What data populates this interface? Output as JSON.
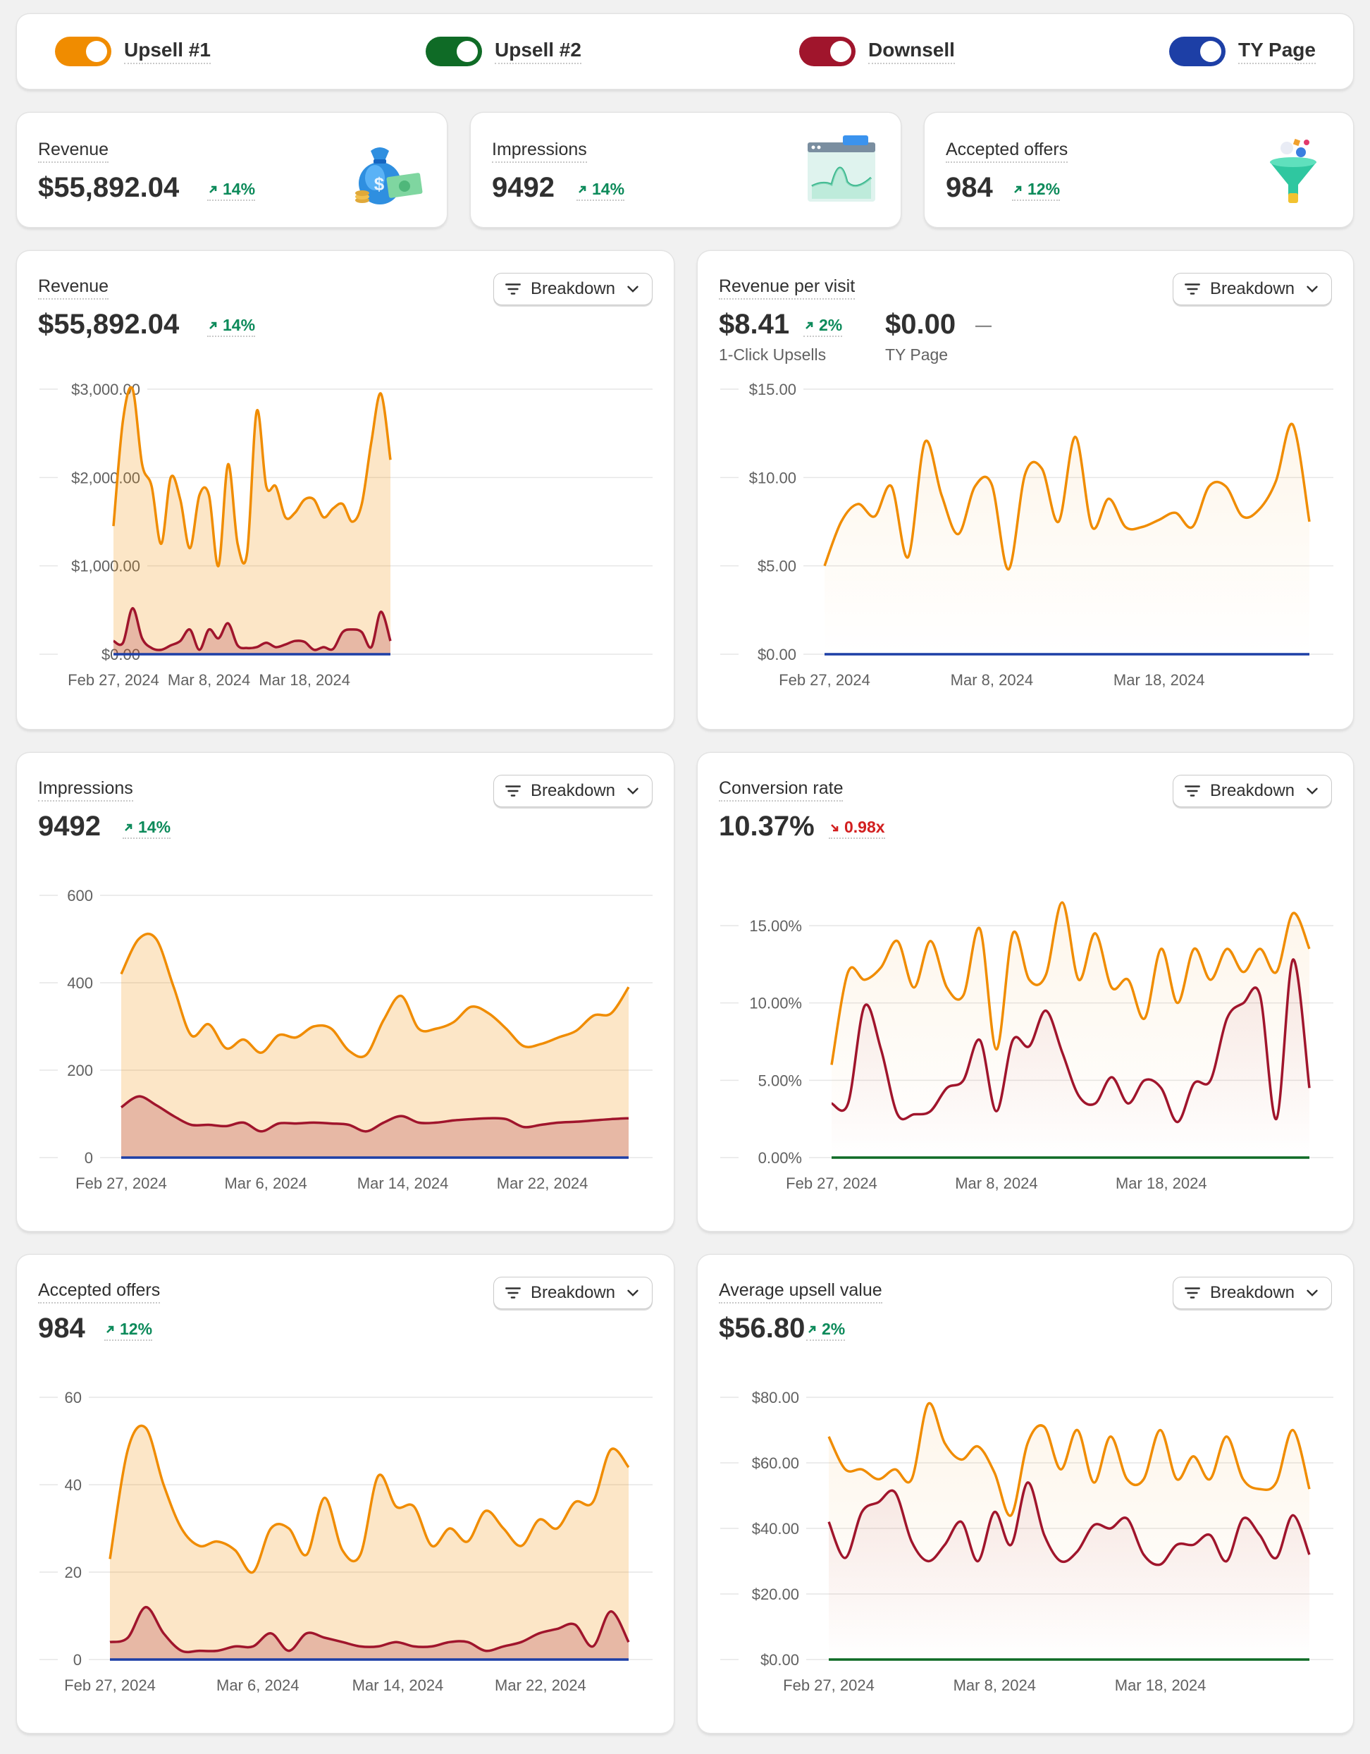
{
  "toggles": [
    {
      "label": "Upsell #1",
      "color": "#f08c00",
      "on": true
    },
    {
      "label": "Upsell #2",
      "color": "#0f6b26",
      "on": true
    },
    {
      "label": "Downsell",
      "color": "#a0152c",
      "on": true
    },
    {
      "label": "TY Page",
      "color": "#1d3fa6",
      "on": true
    }
  ],
  "kpis": [
    {
      "title": "Revenue",
      "value": "$55,892.04",
      "delta": "14%",
      "direction": "up",
      "icon": "money-bag-icon"
    },
    {
      "title": "Impressions",
      "value": "9492",
      "delta": "14%",
      "direction": "up",
      "icon": "chart-window-icon"
    },
    {
      "title": "Accepted offers",
      "value": "984",
      "delta": "12%",
      "direction": "up",
      "icon": "funnel-icon"
    }
  ],
  "breakdown_label": "Breakdown",
  "charts": {
    "revenue": {
      "title": "Revenue",
      "value": "$55,892.04",
      "delta": "14%",
      "direction": "up"
    },
    "rpv": {
      "title": "Revenue per visit",
      "value": "$8.41",
      "delta": "2%",
      "direction": "up",
      "sub_label": "1-Click Upsells",
      "value2": "$0.00",
      "delta2": "—",
      "sub_label2": "TY Page"
    },
    "impressions": {
      "title": "Impressions",
      "value": "9492",
      "delta": "14%",
      "direction": "up"
    },
    "conversion": {
      "title": "Conversion rate",
      "value": "10.37%",
      "delta": "0.98x",
      "direction": "down"
    },
    "accepted": {
      "title": "Accepted offers",
      "value": "984",
      "delta": "12%",
      "direction": "up"
    },
    "aov": {
      "title": "Average upsell value",
      "value": "$56.80",
      "delta": "2%",
      "direction": "up"
    }
  },
  "chart_data": [
    {
      "id": "revenue",
      "type": "area",
      "title": "Revenue",
      "y_ticks": [
        "$3,000.00",
        "$2,000.00",
        "$1,000.00",
        "$0.00"
      ],
      "ylim": [
        0,
        3000
      ],
      "x_ticks": [
        "Feb 27, 2024",
        "Mar 8, 2024",
        "Mar 18, 2024"
      ],
      "series": [
        {
          "color": "#f08c00",
          "fill": true,
          "values": [
            1450,
            2650,
            3000,
            2150,
            1900,
            1250,
            2000,
            1750,
            1200,
            1800,
            1800,
            1000,
            2150,
            1250,
            1150,
            2750,
            1900,
            1900,
            1550,
            1600,
            1750,
            1750,
            1550,
            1650,
            1700,
            1500,
            1700,
            2400,
            2950,
            2200
          ]
        },
        {
          "color": "#a0152c",
          "fill": true,
          "values": [
            150,
            130,
            520,
            180,
            70,
            50,
            100,
            150,
            280,
            50,
            280,
            180,
            350,
            100,
            70,
            80,
            130,
            80,
            110,
            150,
            140,
            50,
            80,
            60,
            250,
            280,
            250,
            80,
            480,
            150
          ]
        },
        {
          "color": "#1d3fa6",
          "fill": false,
          "values": [
            0,
            0,
            0,
            0,
            0,
            0,
            0,
            0,
            0,
            0,
            0,
            0,
            0,
            0,
            0,
            0,
            0,
            0,
            0,
            0,
            0,
            0,
            0,
            0,
            0,
            0,
            0,
            0,
            0,
            0
          ]
        }
      ]
    },
    {
      "id": "rpv",
      "type": "line",
      "title": "Revenue per visit",
      "y_ticks": [
        "$15.00",
        "$10.00",
        "$5.00",
        "$0.00"
      ],
      "ylim": [
        0,
        15
      ],
      "x_ticks": [
        "Feb 27, 2024",
        "Mar 8, 2024",
        "Mar 18, 2024"
      ],
      "series": [
        {
          "color": "#f08c00",
          "fill": "fade",
          "values": [
            5.0,
            7.5,
            8.5,
            7.8,
            9.5,
            5.5,
            12.0,
            9.0,
            6.8,
            9.5,
            9.6,
            4.8,
            10.2,
            10.5,
            7.5,
            12.3,
            7.2,
            8.8,
            7.2,
            7.2,
            7.6,
            8.0,
            7.2,
            9.5,
            9.5,
            7.8,
            8.2,
            9.8,
            13.0,
            7.5
          ]
        },
        {
          "color": "#1d3fa6",
          "fill": false,
          "values": [
            0,
            0,
            0,
            0,
            0,
            0,
            0,
            0,
            0,
            0,
            0,
            0,
            0,
            0,
            0,
            0,
            0,
            0,
            0,
            0,
            0,
            0,
            0,
            0,
            0,
            0,
            0,
            0,
            0,
            0
          ]
        }
      ]
    },
    {
      "id": "impressions",
      "type": "area",
      "title": "Impressions",
      "y_ticks": [
        "600",
        "400",
        "200",
        "0"
      ],
      "ylim": [
        0,
        600
      ],
      "x_ticks": [
        "Feb 27, 2024",
        "Mar 6, 2024",
        "Mar 14, 2024",
        "Mar 22, 2024"
      ],
      "series": [
        {
          "color": "#f08c00",
          "fill": true,
          "values": [
            420,
            500,
            500,
            390,
            280,
            305,
            250,
            270,
            240,
            280,
            275,
            300,
            295,
            245,
            235,
            315,
            370,
            295,
            295,
            310,
            345,
            330,
            295,
            255,
            260,
            275,
            290,
            325,
            330,
            390
          ]
        },
        {
          "color": "#a0152c",
          "fill": true,
          "values": [
            115,
            140,
            120,
            95,
            75,
            75,
            72,
            80,
            60,
            78,
            78,
            80,
            78,
            75,
            60,
            80,
            95,
            80,
            80,
            85,
            88,
            90,
            88,
            70,
            75,
            80,
            82,
            85,
            88,
            90
          ]
        },
        {
          "color": "#1d3fa6",
          "fill": false,
          "values": [
            0,
            0,
            0,
            0,
            0,
            0,
            0,
            0,
            0,
            0,
            0,
            0,
            0,
            0,
            0,
            0,
            0,
            0,
            0,
            0,
            0,
            0,
            0,
            0,
            0,
            0,
            0,
            0,
            0,
            0
          ]
        }
      ]
    },
    {
      "id": "conversion",
      "type": "line",
      "title": "Conversion rate",
      "y_ticks": [
        "15.00%",
        "10.00%",
        "5.00%",
        "0.00%"
      ],
      "ylim": [
        0,
        15
      ],
      "x_ticks": [
        "Feb 27, 2024",
        "Mar 8, 2024",
        "Mar 18, 2024"
      ],
      "series": [
        {
          "color": "#f08c00",
          "fill": "fade",
          "values": [
            6.0,
            12.0,
            11.5,
            12.3,
            14.0,
            11.0,
            14.0,
            11.0,
            10.5,
            14.8,
            7.0,
            14.5,
            11.5,
            11.8,
            16.5,
            11.5,
            14.5,
            11.0,
            11.5,
            9.0,
            13.5,
            10.0,
            13.5,
            11.5,
            13.5,
            12.0,
            13.5,
            12.0,
            15.8,
            13.5
          ]
        },
        {
          "color": "#a0152c",
          "fill": "fade",
          "values": [
            3.5,
            3.5,
            9.8,
            7.0,
            2.8,
            2.8,
            3.0,
            4.5,
            5.0,
            7.6,
            3.0,
            7.6,
            7.2,
            9.5,
            6.8,
            4.0,
            3.5,
            5.2,
            3.5,
            5.0,
            4.5,
            2.3,
            4.8,
            5.0,
            9.0,
            10.0,
            10.5,
            2.5,
            12.8,
            4.5
          ]
        },
        {
          "color": "#0f6b26",
          "fill": false,
          "values": [
            0,
            0,
            0,
            0,
            0,
            0,
            0,
            0,
            0,
            0,
            0,
            0,
            0,
            0,
            0,
            0,
            0,
            0,
            0,
            0,
            0,
            0,
            0,
            0,
            0,
            0,
            0,
            0,
            0,
            0
          ]
        }
      ]
    },
    {
      "id": "accepted",
      "type": "area",
      "title": "Accepted offers",
      "y_ticks": [
        "60",
        "40",
        "20",
        "0"
      ],
      "ylim": [
        0,
        60
      ],
      "x_ticks": [
        "Feb 27, 2024",
        "Mar 6, 2024",
        "Mar 14, 2024",
        "Mar 22, 2024"
      ],
      "series": [
        {
          "color": "#f08c00",
          "fill": true,
          "values": [
            23,
            48,
            53,
            40,
            30,
            26,
            27,
            25,
            20,
            30,
            30,
            24,
            37,
            25,
            24,
            42,
            35,
            35,
            26,
            30,
            27,
            34,
            30,
            26,
            32,
            30,
            36,
            36,
            48,
            44
          ]
        },
        {
          "color": "#a0152c",
          "fill": true,
          "values": [
            4,
            5,
            12,
            6,
            2,
            2,
            2,
            3,
            3,
            6,
            2,
            6,
            5,
            4,
            3,
            3,
            4,
            3,
            3,
            4,
            4,
            2,
            3,
            4,
            6,
            7,
            8,
            3,
            11,
            4
          ]
        },
        {
          "color": "#1d3fa6",
          "fill": false,
          "values": [
            0,
            0,
            0,
            0,
            0,
            0,
            0,
            0,
            0,
            0,
            0,
            0,
            0,
            0,
            0,
            0,
            0,
            0,
            0,
            0,
            0,
            0,
            0,
            0,
            0,
            0,
            0,
            0,
            0,
            0
          ]
        }
      ]
    },
    {
      "id": "aov",
      "type": "line",
      "title": "Average upsell value",
      "y_ticks": [
        "$80.00",
        "$60.00",
        "$40.00",
        "$20.00",
        "$0.00"
      ],
      "ylim": [
        0,
        80
      ],
      "x_ticks": [
        "Feb 27, 2024",
        "Mar 8, 2024",
        "Mar 18, 2024"
      ],
      "series": [
        {
          "color": "#f08c00",
          "fill": "fade",
          "values": [
            68,
            58,
            58,
            55,
            58,
            55,
            78,
            66,
            61,
            65,
            57,
            44,
            66,
            71,
            58,
            70,
            54,
            68,
            55,
            55,
            70,
            55,
            62,
            55,
            68,
            55,
            52,
            54,
            70,
            52
          ]
        },
        {
          "color": "#a0152c",
          "fill": "fade",
          "values": [
            42,
            31,
            45,
            48,
            51,
            36,
            30,
            35,
            42,
            30,
            45,
            35,
            54,
            38,
            30,
            33,
            41,
            40,
            43,
            32,
            29,
            35,
            35,
            38,
            30,
            43,
            38,
            31,
            44,
            32
          ]
        },
        {
          "color": "#0f6b26",
          "fill": false,
          "values": [
            0,
            0,
            0,
            0,
            0,
            0,
            0,
            0,
            0,
            0,
            0,
            0,
            0,
            0,
            0,
            0,
            0,
            0,
            0,
            0,
            0,
            0,
            0,
            0,
            0,
            0,
            0,
            0,
            0,
            0
          ]
        }
      ]
    }
  ]
}
